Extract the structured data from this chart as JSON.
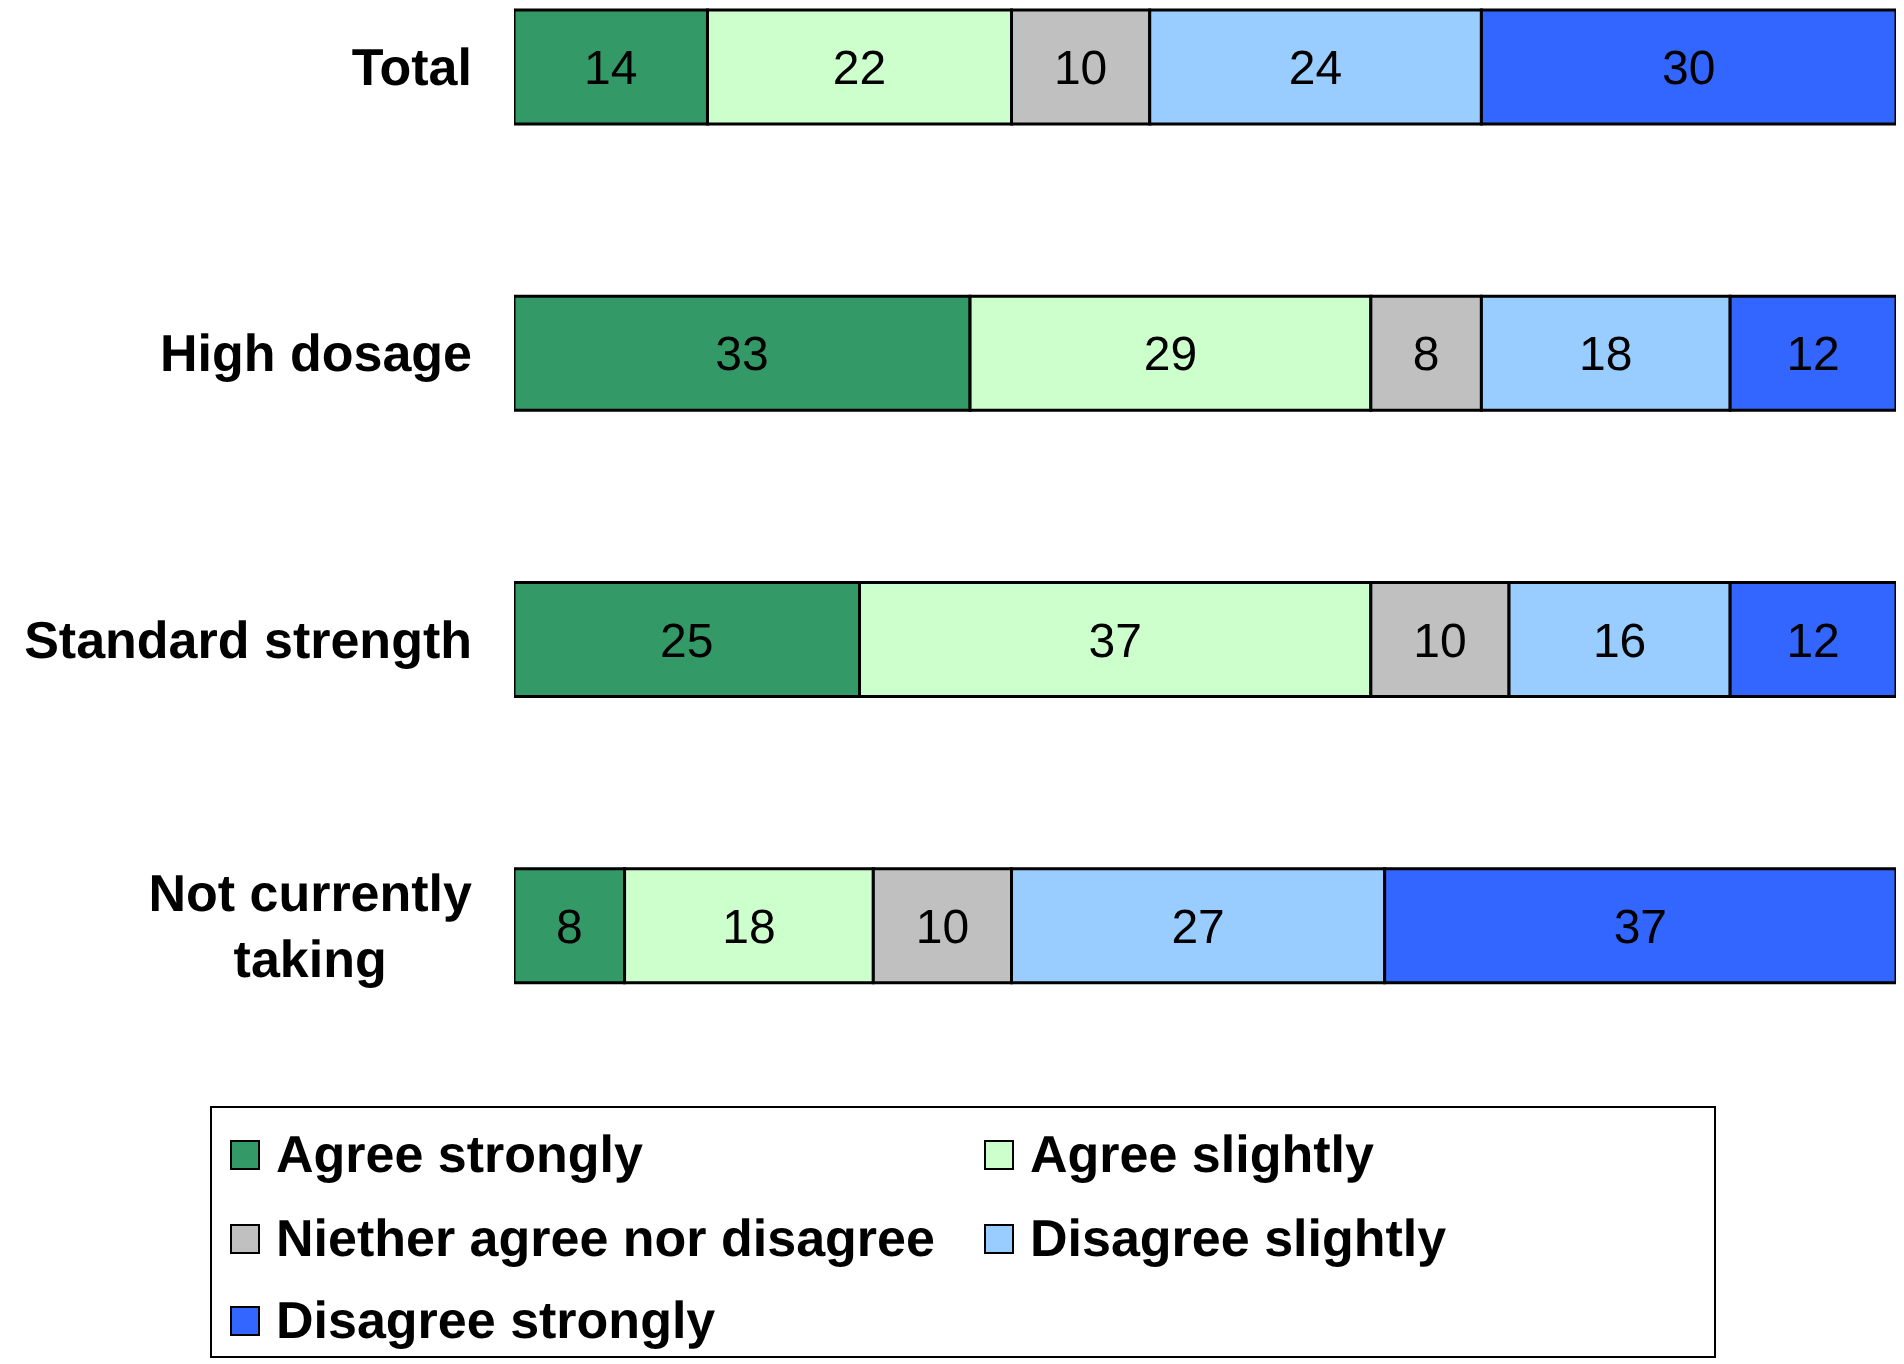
{
  "chart_data": {
    "type": "bar",
    "orientation": "horizontal",
    "stacked": true,
    "categories": [
      "Total",
      "High dosage",
      "Standard strength",
      "Not currently taking"
    ],
    "series": [
      {
        "name": "Agree strongly",
        "color": "#339966",
        "values": [
          14,
          33,
          25,
          8
        ]
      },
      {
        "name": "Agree slightly",
        "color": "#ccffcc",
        "values": [
          22,
          29,
          37,
          18
        ]
      },
      {
        "name": "Niether agree nor disagree",
        "color": "#c0c0c0",
        "values": [
          10,
          8,
          10,
          10
        ]
      },
      {
        "name": "Disagree slightly",
        "color": "#99ccff",
        "values": [
          24,
          18,
          16,
          27
        ]
      },
      {
        "name": "Disagree strongly",
        "color": "#3366ff",
        "values": [
          30,
          12,
          12,
          37
        ]
      }
    ],
    "xlim": [
      0,
      100
    ],
    "data_labels": true,
    "legend": "bottom",
    "tick_labels": "y"
  }
}
